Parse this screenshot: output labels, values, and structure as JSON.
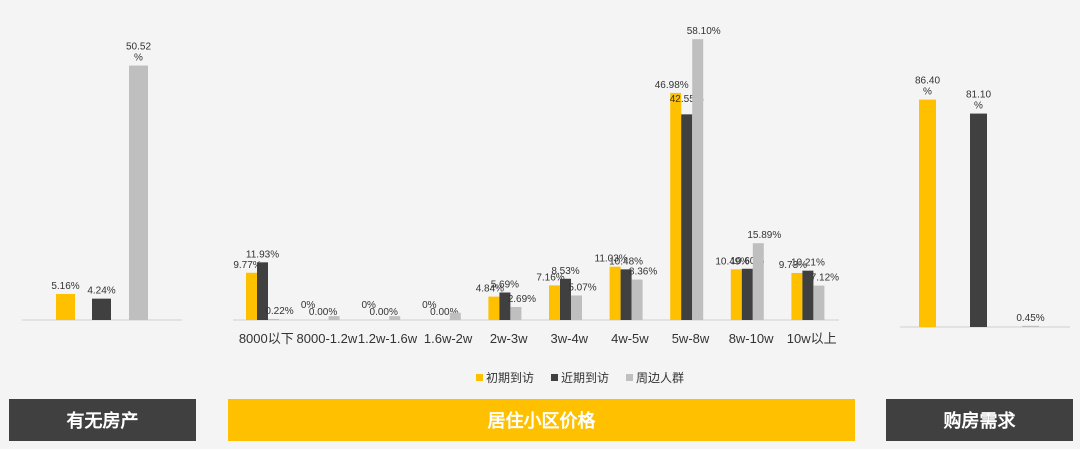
{
  "chart_data": [
    {
      "type": "bar",
      "categories": [
        ""
      ],
      "series": [
        {
          "values": [
            5.16
          ],
          "labels": [
            "5.16%"
          ]
        },
        {
          "values": [
            4.24
          ],
          "labels": [
            "4.24%"
          ]
        },
        {
          "values": [
            50.52
          ],
          "labels": [
            "50.52\n%"
          ]
        }
      ],
      "ylim": [
        0,
        55
      ]
    },
    {
      "type": "bar",
      "categories": [
        "8000以下",
        "8000-1.2w",
        "1.2w-1.6w",
        "1.6w-2w",
        "2w-3w",
        "3w-4w",
        "4w-5w",
        "5w-8w",
        "8w-10w",
        "10w以上"
      ],
      "series": [
        {
          "name": "初期到访",
          "values": [
            9.77,
            0,
            0,
            0,
            4.84,
            7.16,
            11.03,
            46.98,
            10.49,
            9.73
          ],
          "labels": [
            "9.77%",
            "0%",
            "0%",
            "0%",
            "4.84%",
            "7.16%",
            "11.03%",
            "46.98%",
            "10.49%",
            "9.73%"
          ]
        },
        {
          "name": "近期到访",
          "values": [
            11.93,
            0,
            0,
            0,
            5.69,
            8.53,
            10.48,
            42.55,
            10.6,
            10.21
          ],
          "labels": [
            "11.93%",
            "0.00%",
            "0.00%",
            "0.00%",
            "5.69%",
            "8.53%",
            "10.48%",
            "42.55%",
            "10.60%",
            "10.21%"
          ]
        },
        {
          "name": "周边人群",
          "values": [
            0.22,
            0.8,
            0.8,
            1.5,
            2.69,
            5.07,
            8.36,
            58.1,
            15.89,
            7.12
          ],
          "labels": [
            "0.22%",
            "",
            "",
            "",
            "2.69%",
            "5.07%",
            "8.36%",
            "58.10%",
            "15.89%",
            "7.12%"
          ]
        }
      ],
      "ylim": [
        0,
        60
      ],
      "legend": "bottom"
    },
    {
      "type": "bar",
      "categories": [
        ""
      ],
      "series": [
        {
          "values": [
            86.4
          ],
          "labels": [
            "86.40\n%"
          ]
        },
        {
          "values": [
            81.1
          ],
          "labels": [
            "81.10\n%"
          ]
        },
        {
          "values": [
            0.45
          ],
          "labels": [
            "0.45%"
          ]
        }
      ],
      "ylim": [
        0,
        95
      ]
    }
  ],
  "colors": {
    "initial": "#ffc000",
    "recent": "#404040",
    "surrounding": "#bfbfbf",
    "banner_dark": "#404040",
    "banner_yellow": "#ffc000"
  },
  "banners": {
    "left": "有无房产",
    "middle": "居住小区价格",
    "right": "购房需求"
  }
}
